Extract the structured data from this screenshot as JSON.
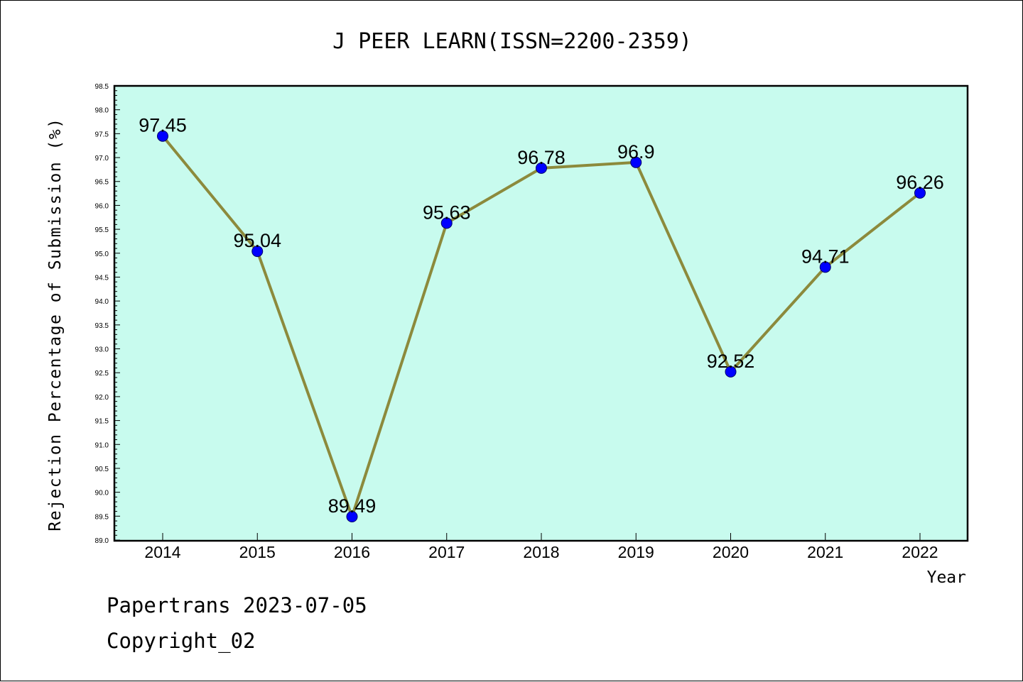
{
  "chart_data": {
    "type": "line",
    "title": "J PEER LEARN(ISSN=2200-2359)",
    "xlabel": "Year",
    "ylabel": "Rejection Percentage of Submission (%)",
    "categories": [
      "2014",
      "2015",
      "2016",
      "2017",
      "2018",
      "2019",
      "2020",
      "2021",
      "2022"
    ],
    "values": [
      97.45,
      95.04,
      89.49,
      95.63,
      96.78,
      96.9,
      92.52,
      94.71,
      96.26
    ],
    "data_labels": [
      "97.45",
      "95.04",
      "89.49",
      "95.63",
      "96.78",
      "96.9",
      "92.52",
      "94.71",
      "96.26"
    ],
    "ylim": [
      89.0,
      98.5
    ],
    "yticks": [
      "89.0",
      "89.5",
      "90.0",
      "90.5",
      "91.0",
      "91.5",
      "92.0",
      "92.5",
      "93.0",
      "93.5",
      "94.0",
      "94.5",
      "95.0",
      "95.5",
      "96.0",
      "96.5",
      "97.0",
      "97.5",
      "98.0",
      "98.5"
    ],
    "grid": false,
    "colors": {
      "plot_background": "#c8fbee",
      "line": "#8c8a3c",
      "marker": "#0000ff"
    }
  },
  "footer": {
    "source_line": "Papertrans 2023-07-05",
    "copyright_line": "Copyright_02"
  }
}
